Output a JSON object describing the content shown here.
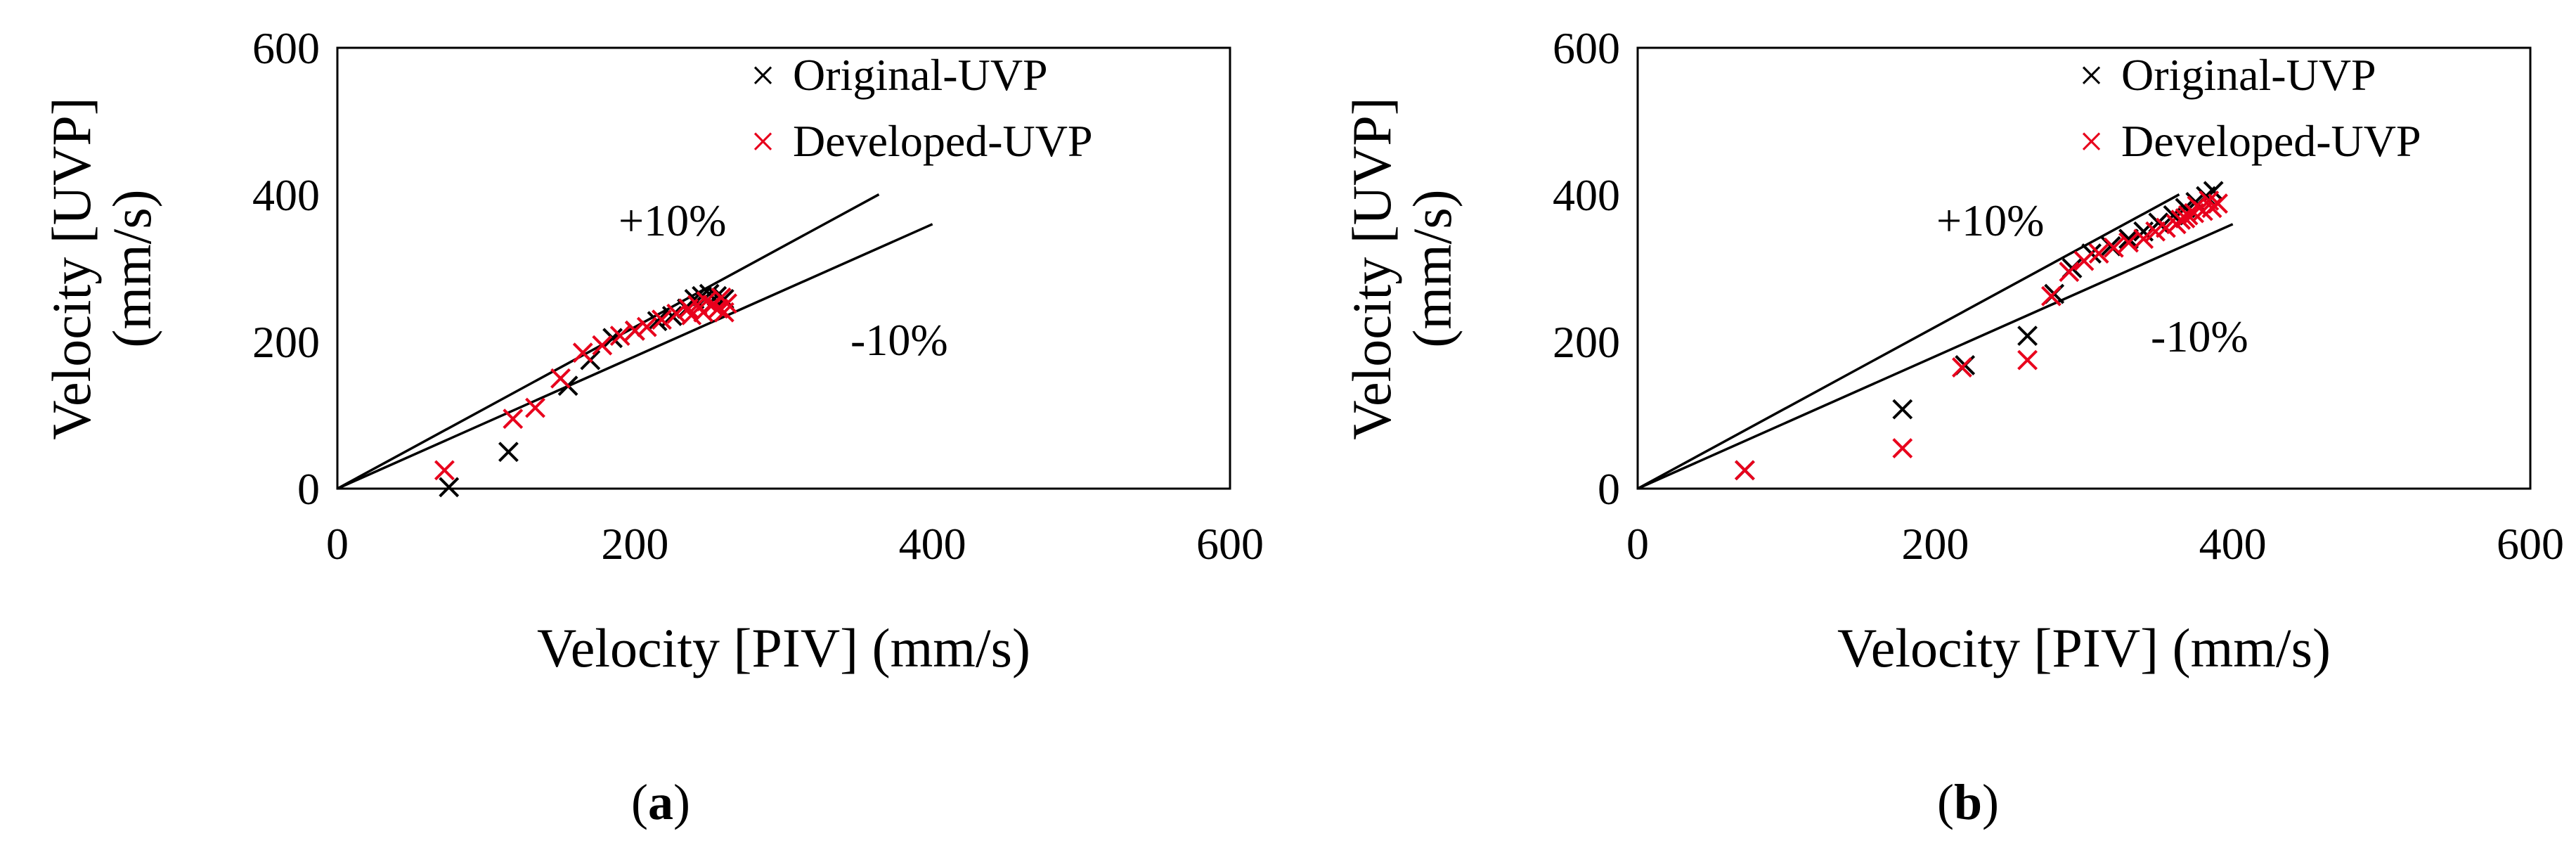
{
  "chart_data": [
    {
      "type": "scatter",
      "panel": "a",
      "xlabel": "Velocity [PIV] (mm/s)",
      "ylabel_line1": "Velocity [UVP]",
      "ylabel_line2": "(mm/s)",
      "xlim": [
        0,
        600
      ],
      "ylim": [
        0,
        600
      ],
      "xticks": [
        0,
        200,
        400,
        600
      ],
      "yticks": [
        0,
        200,
        400,
        600
      ],
      "grid": false,
      "legend_position": "top-right",
      "reference_lines": [
        {
          "label": "+10%",
          "slope": 1.1,
          "x_end": 364
        },
        {
          "label": "-10%",
          "slope": 0.9,
          "x_end": 400
        }
      ],
      "series": [
        {
          "name": "Original-UVP",
          "color": "#000000",
          "points": [
            [
              75,
              2
            ],
            [
              115,
              50
            ],
            [
              155,
              140
            ],
            [
              170,
              175
            ],
            [
              185,
              205
            ],
            [
              200,
              215
            ],
            [
              215,
              228
            ],
            [
              225,
              235
            ],
            [
              235,
              245
            ],
            [
              240,
              258
            ],
            [
              245,
              262
            ],
            [
              250,
              265
            ],
            [
              255,
              262
            ],
            [
              260,
              258
            ]
          ]
        },
        {
          "name": "Developed-UVP",
          "color": "#e8001c",
          "points": [
            [
              72,
              25
            ],
            [
              118,
              95
            ],
            [
              133,
              110
            ],
            [
              150,
              150
            ],
            [
              165,
              185
            ],
            [
              178,
              195
            ],
            [
              190,
              208
            ],
            [
              200,
              215
            ],
            [
              208,
              220
            ],
            [
              218,
              230
            ],
            [
              228,
              238
            ],
            [
              236,
              245
            ],
            [
              242,
              250
            ],
            [
              248,
              255
            ],
            [
              252,
              250
            ],
            [
              256,
              245
            ],
            [
              260,
              240
            ],
            [
              262,
              252
            ],
            [
              258,
              260
            ],
            [
              246,
              240
            ],
            [
              238,
              236
            ]
          ]
        }
      ]
    },
    {
      "type": "scatter",
      "panel": "b",
      "xlabel": "Velocity [PIV] (mm/s)",
      "ylabel_line1": "Velocity [UVP]",
      "ylabel_line2": "(mm/s)",
      "xlim": [
        0,
        600
      ],
      "ylim": [
        0,
        600
      ],
      "xticks": [
        0,
        200,
        400,
        600
      ],
      "yticks": [
        0,
        200,
        400,
        600
      ],
      "grid": false,
      "legend_position": "top-right",
      "reference_lines": [
        {
          "label": "+10%",
          "slope": 1.1,
          "x_end": 364
        },
        {
          "label": "-10%",
          "slope": 0.9,
          "x_end": 400
        }
      ],
      "series": [
        {
          "name": "Original-UVP",
          "color": "#000000",
          "points": [
            [
              72,
              25
            ],
            [
              178,
              108
            ],
            [
              220,
              168
            ],
            [
              262,
              208
            ],
            [
              280,
              265
            ],
            [
              292,
              300
            ],
            [
              305,
              320
            ],
            [
              318,
              330
            ],
            [
              330,
              340
            ],
            [
              340,
              350
            ],
            [
              350,
              362
            ],
            [
              360,
              372
            ],
            [
              368,
              382
            ],
            [
              375,
              390
            ],
            [
              382,
              398
            ],
            [
              387,
              405
            ]
          ]
        },
        {
          "name": "Developed-UVP",
          "color": "#e8001c",
          "points": [
            [
              72,
              25
            ],
            [
              178,
              55
            ],
            [
              218,
              165
            ],
            [
              262,
              175
            ],
            [
              278,
              262
            ],
            [
              290,
              295
            ],
            [
              300,
              310
            ],
            [
              310,
              320
            ],
            [
              320,
              328
            ],
            [
              330,
              335
            ],
            [
              340,
              340
            ],
            [
              348,
              350
            ],
            [
              355,
              355
            ],
            [
              362,
              360
            ],
            [
              368,
              368
            ],
            [
              374,
              375
            ],
            [
              380,
              378
            ],
            [
              386,
              382
            ],
            [
              390,
              388
            ],
            [
              384,
              392
            ],
            [
              376,
              385
            ],
            [
              370,
              372
            ],
            [
              365,
              366
            ]
          ]
        }
      ]
    }
  ],
  "captions": {
    "a": "a",
    "b": "b"
  }
}
